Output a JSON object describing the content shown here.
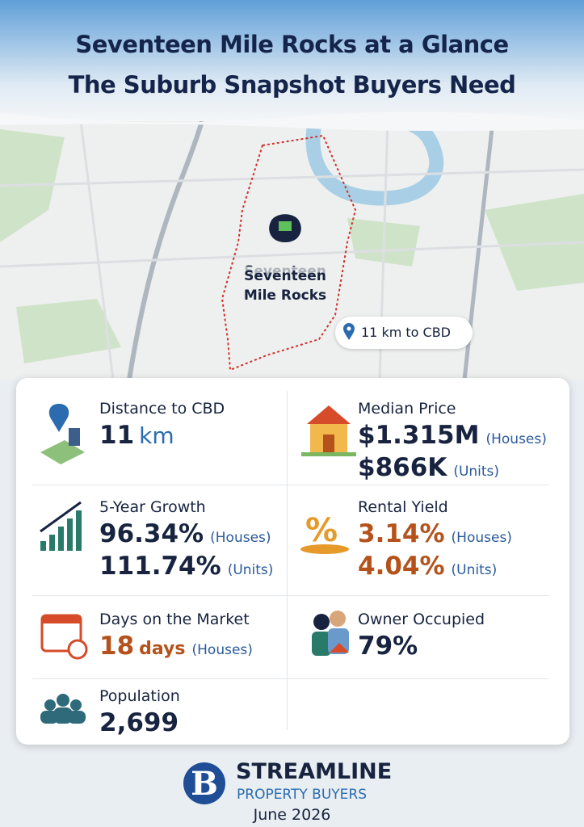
{
  "header": {
    "title_line1": "Seventeen Mile Rocks at a Glance",
    "title_line2": "The Suburb Snapshot Buyers Need"
  },
  "map": {
    "suburb_label": "Seventeen Mile Rocks",
    "distance_pill": "11 km to CBD"
  },
  "stats": [
    {
      "label": "Distance to CBD",
      "lines": [
        {
          "value": "11",
          "unit": "km"
        }
      ]
    },
    {
      "label": "Median Price",
      "lines": [
        {
          "value": "$1.315M",
          "note": "(Houses)"
        },
        {
          "value": "$866K",
          "note": "(Units)"
        }
      ]
    },
    {
      "label": "5-Year Growth",
      "lines": [
        {
          "value": "96.34%",
          "note": "(Houses)"
        },
        {
          "value": "111.74%",
          "note": "(Units)"
        }
      ]
    },
    {
      "label": "Rental Yield",
      "lines": [
        {
          "value": "3.14%",
          "note": "(Houses)"
        },
        {
          "value": "4.04%",
          "note": "(Units)"
        }
      ]
    },
    {
      "label": "Days on the Market",
      "lines": [
        {
          "value": "18",
          "unit": "days",
          "note": "(Houses)"
        }
      ]
    },
    {
      "label": "Owner Occupied",
      "lines": [
        {
          "value": "79%"
        }
      ]
    },
    {
      "label": "Population",
      "lines": [
        {
          "value": "2,699"
        }
      ]
    }
  ],
  "footer": {
    "brand": "STREAMLINE",
    "brand_sub": "PROPERTY BUYERS",
    "date": "June 2026"
  }
}
